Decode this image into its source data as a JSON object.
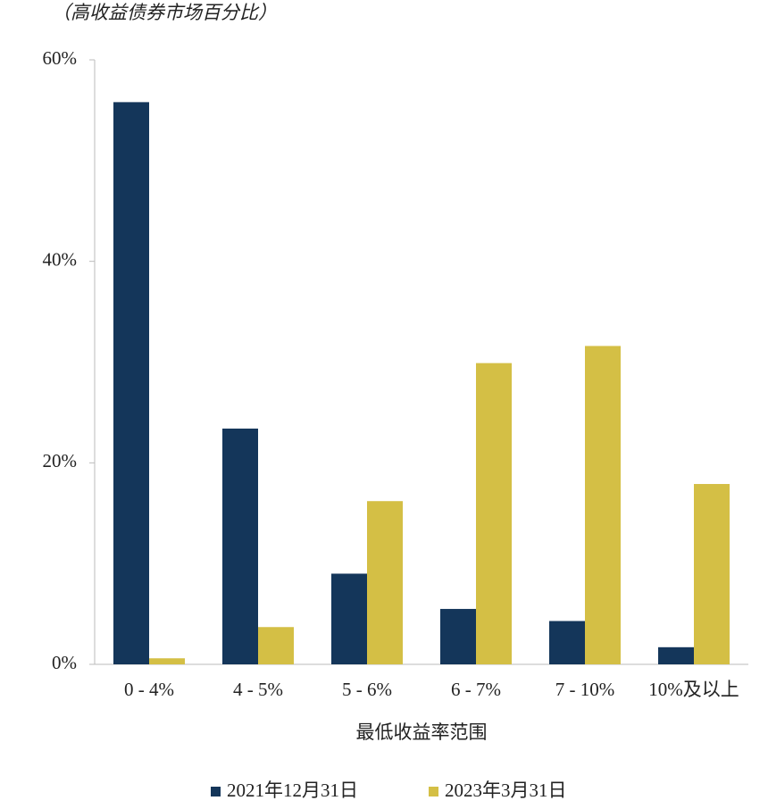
{
  "chart_data": {
    "type": "bar",
    "ylabel": "（高收益债券市场百分比）",
    "xlabel": "最低收益率范围",
    "categories": [
      "0 - 4%",
      "4 - 5%",
      "5 - 6%",
      "6 - 7%",
      "7 - 10%",
      "10%及以上"
    ],
    "series": [
      {
        "name": "2021年12月31日",
        "color": "#14365a",
        "values": [
          55.8,
          23.4,
          9.0,
          5.5,
          4.3,
          1.7
        ]
      },
      {
        "name": "2023年3月31日",
        "color": "#d4bf45",
        "values": [
          0.6,
          3.7,
          16.2,
          29.9,
          31.6,
          17.9
        ]
      }
    ],
    "ylim": [
      0,
      60
    ],
    "yticks": [
      {
        "value": 0,
        "label": "0%"
      },
      {
        "value": 20,
        "label": "20%"
      },
      {
        "value": 40,
        "label": "40%"
      },
      {
        "value": 60,
        "label": "60%"
      }
    ],
    "legend": "bottom"
  }
}
